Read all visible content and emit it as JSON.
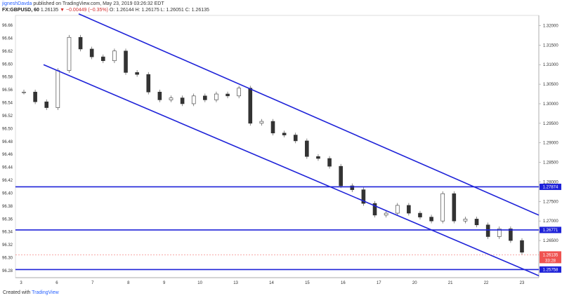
{
  "header": {
    "author": "jigneshDavda",
    "published_text": "published on TradingView.com, May 23, 2019 03:26:32 EDT",
    "symbol": "FX:GBPUSD, 60",
    "last": "1.26135",
    "change": "▼ −0.00449 (−0.35%)",
    "ohlc": "O: 1.26144  H: 1.26175  L: 1.26051  C: 1.26135"
  },
  "footer": {
    "created_with": "Created with",
    "brand": "TradingView"
  },
  "colors": {
    "up": "#26a69a",
    "down": "#ef5350",
    "wick": "#555555",
    "channel": "#1e22d8",
    "level": "#1e22d8",
    "price_tag": "#ef5350"
  },
  "chart_data": {
    "type": "candlestick",
    "left_axis": {
      "labels": [
        "96.66",
        "96.64",
        "96.62",
        "96.60",
        "96.58",
        "96.56",
        "96.54",
        "96.52",
        "96.50",
        "96.48",
        "96.46",
        "96.44",
        "96.42",
        "96.40",
        "96.38",
        "96.36",
        "96.34",
        "96.32",
        "96.30",
        "96.28"
      ]
    },
    "right_axis": {
      "labels": [
        "1.32000",
        "1.31500",
        "1.31000",
        "1.30500",
        "1.30000",
        "1.29500",
        "1.29000",
        "1.28500",
        "1.28000",
        "1.27500",
        "1.27000",
        "1.26500"
      ],
      "ylim": [
        1.2555,
        1.3226
      ]
    },
    "x_axis": {
      "labels": [
        "3",
        "6",
        "7",
        "8",
        "9",
        "10",
        "13",
        "14",
        "15",
        "16",
        "17",
        "20",
        "21",
        "22",
        "23"
      ]
    },
    "horizontal_levels": [
      {
        "value": 1.27874,
        "label": "1.27874"
      },
      {
        "value": 1.26771,
        "label": "1.26771"
      },
      {
        "value": 1.25758,
        "label": "1.25758"
      }
    ],
    "current_price": {
      "value": 1.26135,
      "label": "1.26135",
      "countdown": "33:28"
    },
    "channel": {
      "upper": {
        "start": [
          "5",
          1.323
        ],
        "end": [
          "23+",
          1.2715
        ]
      },
      "lower": {
        "start": [
          "6",
          1.31
        ],
        "end": [
          "23+",
          1.256
        ]
      }
    },
    "close_path": [
      [
        "3",
        1.303
      ],
      [
        "3",
        1.3005
      ],
      [
        "3",
        1.299
      ],
      [
        "6",
        1.3085
      ],
      [
        "6",
        1.317
      ],
      [
        "6",
        1.314
      ],
      [
        "6",
        1.312
      ],
      [
        "7",
        1.311
      ],
      [
        "7",
        1.3135
      ],
      [
        "7",
        1.308
      ],
      [
        "8",
        1.3075
      ],
      [
        "8",
        1.303
      ],
      [
        "8",
        1.301
      ],
      [
        "9",
        1.3015
      ],
      [
        "9",
        1.3
      ],
      [
        "10",
        1.302
      ],
      [
        "10",
        1.301
      ],
      [
        "10",
        1.3025
      ],
      [
        "13",
        1.302
      ],
      [
        "13",
        1.304
      ],
      [
        "13",
        1.295
      ],
      [
        "14",
        1.2955
      ],
      [
        "14",
        1.2925
      ],
      [
        "15",
        1.292
      ],
      [
        "15",
        1.2905
      ],
      [
        "15",
        1.2865
      ],
      [
        "16",
        1.286
      ],
      [
        "16",
        1.284
      ],
      [
        "17",
        1.279
      ],
      [
        "17",
        1.278
      ],
      [
        "17",
        1.2745
      ],
      [
        "20",
        1.2715
      ],
      [
        "20",
        1.272
      ],
      [
        "20",
        1.274
      ],
      [
        "21",
        1.272
      ],
      [
        "21",
        1.271
      ],
      [
        "21",
        1.27
      ],
      [
        "21",
        1.277
      ],
      [
        "22",
        1.27
      ],
      [
        "22",
        1.2705
      ],
      [
        "22",
        1.269
      ],
      [
        "22",
        1.266
      ],
      [
        "23",
        1.268
      ],
      [
        "23",
        1.265
      ],
      [
        "23",
        1.262
      ]
    ]
  }
}
